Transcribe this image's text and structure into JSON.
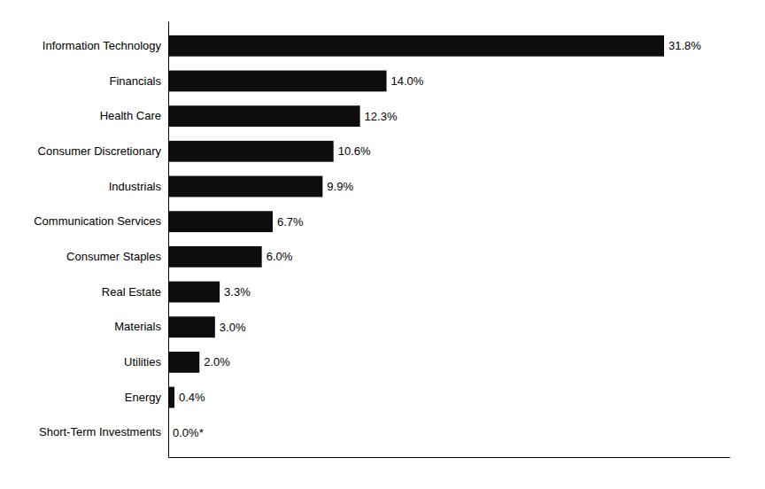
{
  "chart_data": {
    "type": "bar",
    "orientation": "horizontal",
    "categories": [
      "Short-Term Investments",
      "Energy",
      "Utilities",
      "Materials",
      "Real Estate",
      "Consumer Staples",
      "Communication Services",
      "Industrials",
      "Consumer Discretionary",
      "Health Care",
      "Financials",
      "Information Technology"
    ],
    "values": [
      0.0,
      0.4,
      2.0,
      3.0,
      3.3,
      6.0,
      6.7,
      9.9,
      10.6,
      12.3,
      14.0,
      31.8
    ],
    "value_labels": [
      "0.0%*",
      "0.4%",
      "2.0%",
      "3.0%",
      "3.3%",
      "6.0%",
      "6.7%",
      "9.9%",
      "10.6%",
      "12.3%",
      "14.0%",
      "31.8%"
    ],
    "color": "#0d0d0d",
    "xlim": [
      0,
      36
    ],
    "data_labels": true,
    "tick_labels": "y",
    "grid": false
  }
}
